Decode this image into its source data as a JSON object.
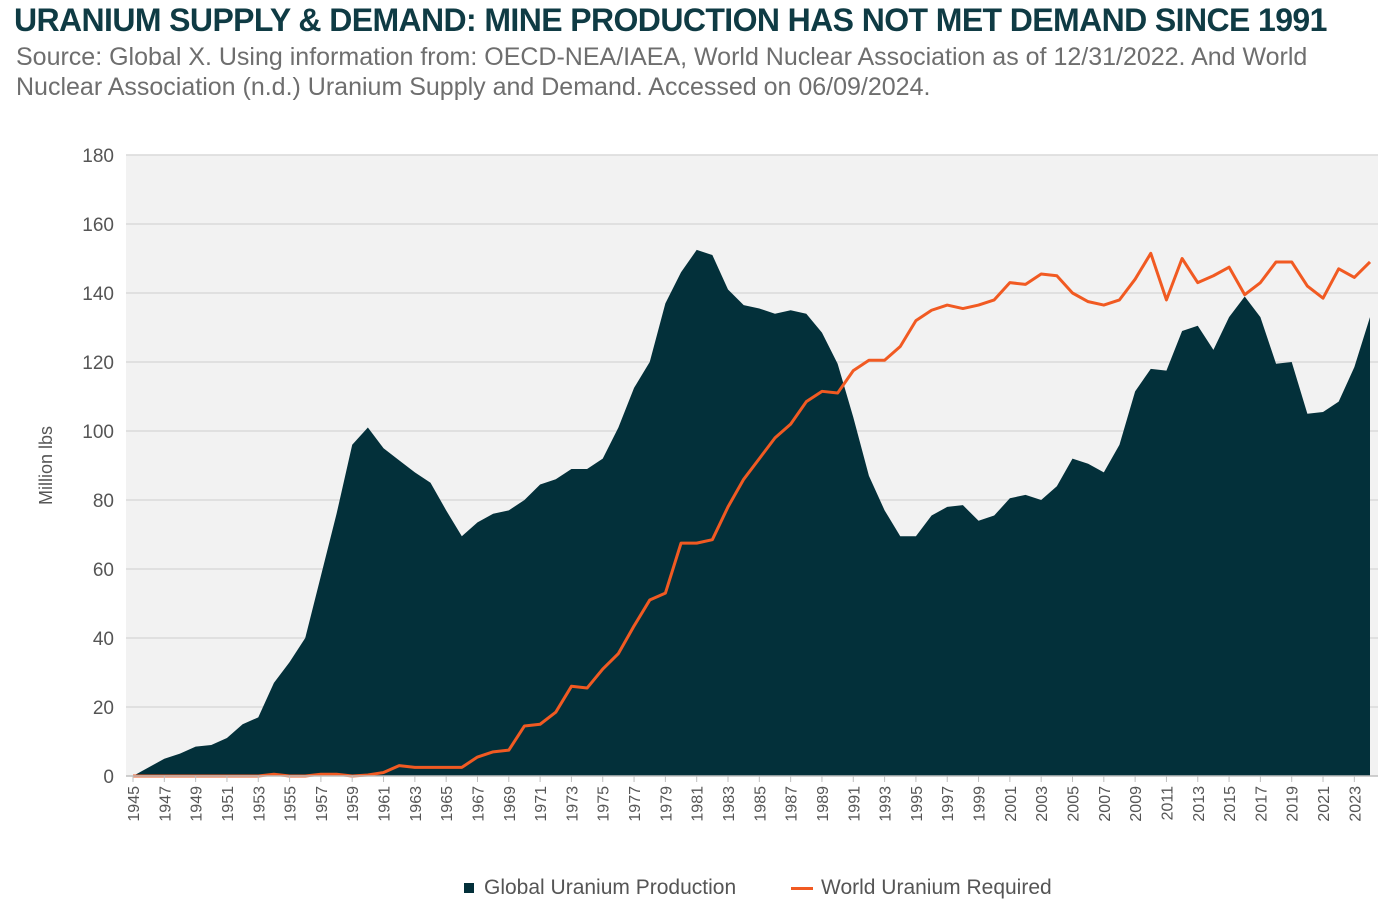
{
  "header": {
    "title": "URANIUM SUPPLY & DEMAND: MINE PRODUCTION HAS NOT MET DEMAND SINCE 1991",
    "subtitle": "Source: Global X. Using information from: OECD-NEA/IAEA, World Nuclear Association as of 12/31/2022. And World Nuclear Association (n.d.) Uranium Supply and Demand. Accessed on 06/09/2024."
  },
  "colors": {
    "production": "#03303a",
    "required": "#f15a22",
    "grid": "#d9d9d9",
    "plot_bg": "#f2f2f2"
  },
  "chart_data": {
    "type": "area",
    "title": "URANIUM SUPPLY & DEMAND: MINE PRODUCTION HAS NOT MET DEMAND SINCE 1991",
    "ylabel": "Million lbs",
    "xlabel": "",
    "ylim": [
      0,
      180
    ],
    "yticks": [
      0,
      20,
      40,
      60,
      80,
      100,
      120,
      140,
      160,
      180
    ],
    "xlim": [
      1945,
      2024
    ],
    "xticks": [
      1945,
      1947,
      1949,
      1951,
      1953,
      1955,
      1957,
      1959,
      1961,
      1963,
      1965,
      1967,
      1969,
      1971,
      1973,
      1975,
      1977,
      1979,
      1981,
      1983,
      1985,
      1987,
      1989,
      1991,
      1993,
      1995,
      1997,
      1999,
      2001,
      2003,
      2005,
      2007,
      2009,
      2011,
      2013,
      2015,
      2017,
      2019,
      2021,
      2023
    ],
    "grid": true,
    "legend_position": "bottom-center",
    "x": [
      1945,
      1946,
      1947,
      1948,
      1949,
      1950,
      1951,
      1952,
      1953,
      1954,
      1955,
      1956,
      1957,
      1958,
      1959,
      1960,
      1961,
      1962,
      1963,
      1964,
      1965,
      1966,
      1967,
      1968,
      1969,
      1970,
      1971,
      1972,
      1973,
      1974,
      1975,
      1976,
      1977,
      1978,
      1979,
      1980,
      1981,
      1982,
      1983,
      1984,
      1985,
      1986,
      1987,
      1988,
      1989,
      1990,
      1991,
      1992,
      1993,
      1994,
      1995,
      1996,
      1997,
      1998,
      1999,
      2000,
      2001,
      2002,
      2003,
      2004,
      2005,
      2006,
      2007,
      2008,
      2009,
      2010,
      2011,
      2012,
      2013,
      2014,
      2015,
      2016,
      2017,
      2018,
      2019,
      2020,
      2021,
      2022,
      2023,
      2024
    ],
    "series": [
      {
        "name": "Global Uranium Production",
        "style": "area",
        "values": [
          0,
          2.5,
          5,
          6.5,
          8.5,
          9,
          11,
          15,
          17,
          27,
          33,
          40,
          58,
          76,
          96,
          101,
          95,
          91.5,
          88,
          85,
          77,
          69.5,
          73.5,
          76,
          77,
          80,
          84.5,
          86,
          89,
          89,
          92,
          101,
          112.5,
          120,
          137,
          146,
          152.5,
          151,
          141,
          136.5,
          135.5,
          134,
          135,
          134,
          128.5,
          119.5,
          104,
          87,
          77,
          69.5,
          69.5,
          75.5,
          78,
          78.5,
          74,
          75.5,
          80.5,
          81.5,
          80,
          84,
          92,
          90.5,
          88,
          96,
          111.5,
          118,
          117.5,
          129,
          130.5,
          123.5,
          133,
          139,
          133,
          119.5,
          120,
          105,
          105.5,
          108.5,
          118.5,
          133
        ]
      },
      {
        "name": "World Uranium Required",
        "style": "line",
        "values": [
          0,
          0,
          0,
          0,
          0,
          0,
          0,
          0,
          0,
          0.5,
          0,
          0,
          0.5,
          0.5,
          0,
          0.3,
          1,
          3,
          2.5,
          2.5,
          2.5,
          2.5,
          5.5,
          7,
          7.5,
          14.5,
          15,
          18.5,
          26,
          25.5,
          31,
          35.5,
          43.5,
          51,
          53,
          67.5,
          67.5,
          68.5,
          78,
          86,
          92,
          98,
          102,
          108.5,
          111.5,
          111,
          117.5,
          120.5,
          120.5,
          124.5,
          132,
          135,
          136.5,
          135.5,
          136.5,
          138,
          143,
          142.5,
          145.5,
          145,
          140,
          137.5,
          136.5,
          138,
          144,
          151.5,
          138,
          150,
          143,
          145,
          147.5,
          139.5,
          143,
          149,
          149,
          142,
          138.5,
          147,
          144.5,
          149
        ]
      }
    ]
  },
  "legend": {
    "items": [
      {
        "label": "Global Uranium Production"
      },
      {
        "label": "World Uranium Required"
      }
    ]
  }
}
